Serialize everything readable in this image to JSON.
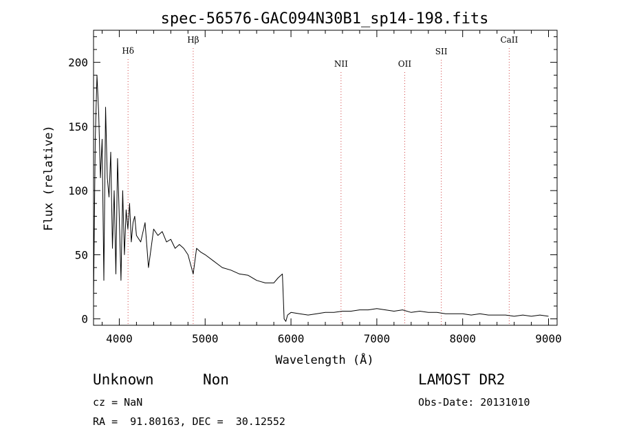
{
  "chart_data": {
    "type": "line",
    "title": "spec-56576-GAC094N30B1_sp14-198.fits",
    "xlabel": "Wavelength (Å)",
    "ylabel": "Flux (relative)",
    "xlim": [
      3700,
      9100
    ],
    "ylim": [
      -5,
      225
    ],
    "x_ticks": [
      4000,
      5000,
      6000,
      7000,
      8000,
      9000
    ],
    "x_tick_labels": [
      "4000",
      "5000",
      "6000",
      "7000",
      "8000",
      "9000"
    ],
    "y_ticks": [
      0,
      50,
      100,
      150,
      200
    ],
    "y_tick_labels": [
      "0",
      "50",
      "100",
      "150",
      "200"
    ],
    "grid": false,
    "spectral_lines": [
      {
        "label": "Hδ",
        "wavelength": 4102
      },
      {
        "label": "Hβ",
        "wavelength": 4861
      },
      {
        "label": "NII",
        "wavelength": 6583
      },
      {
        "label": "OII",
        "wavelength": 7325
      },
      {
        "label": "SII",
        "wavelength": 7751
      },
      {
        "label": "CaII",
        "wavelength": 8542
      }
    ],
    "series": [
      {
        "x": [
          3700,
          3720,
          3740,
          3760,
          3780,
          3800,
          3820,
          3840,
          3860,
          3880,
          3900,
          3920,
          3940,
          3960,
          3980,
          4000,
          4020,
          4040,
          4060,
          4080,
          4100,
          4120,
          4140,
          4160,
          4180,
          4200,
          4250,
          4300,
          4340,
          4400,
          4450,
          4500,
          4550,
          4600,
          4650,
          4700,
          4750,
          4800,
          4861,
          4900,
          4950,
          5000,
          5100,
          5200,
          5300,
          5400,
          5500,
          5600,
          5700,
          5800,
          5850,
          5900,
          5920,
          5940,
          5960,
          6000,
          6100,
          6200,
          6300,
          6400,
          6500,
          6600,
          6700,
          6800,
          6900,
          7000,
          7100,
          7200,
          7300,
          7400,
          7500,
          7600,
          7700,
          7800,
          7900,
          8000,
          8100,
          8200,
          8300,
          8400,
          8500,
          8600,
          8700,
          8800,
          8900,
          9000
        ],
        "y": [
          15,
          140,
          190,
          160,
          110,
          140,
          30,
          165,
          110,
          95,
          130,
          55,
          100,
          35,
          125,
          80,
          30,
          100,
          50,
          85,
          70,
          90,
          60,
          75,
          80,
          65,
          60,
          75,
          40,
          70,
          65,
          68,
          60,
          62,
          55,
          58,
          55,
          50,
          35,
          55,
          52,
          50,
          45,
          40,
          38,
          35,
          34,
          30,
          28,
          28,
          32,
          35,
          0,
          -2,
          3,
          5,
          4,
          3,
          4,
          5,
          5,
          6,
          6,
          7,
          7,
          8,
          7,
          6,
          7,
          5,
          6,
          5,
          5,
          4,
          4,
          4,
          3,
          4,
          3,
          3,
          3,
          2,
          3,
          2,
          3,
          2
        ]
      }
    ]
  },
  "footer": {
    "class_text": "Unknown",
    "subclass_text": "Non",
    "survey_text": "LAMOST DR2",
    "cz_text": "cz = NaN",
    "obs_date_text": "Obs-Date: 20131010",
    "coords_text": "RA =  91.80163, DEC =  30.12552"
  }
}
